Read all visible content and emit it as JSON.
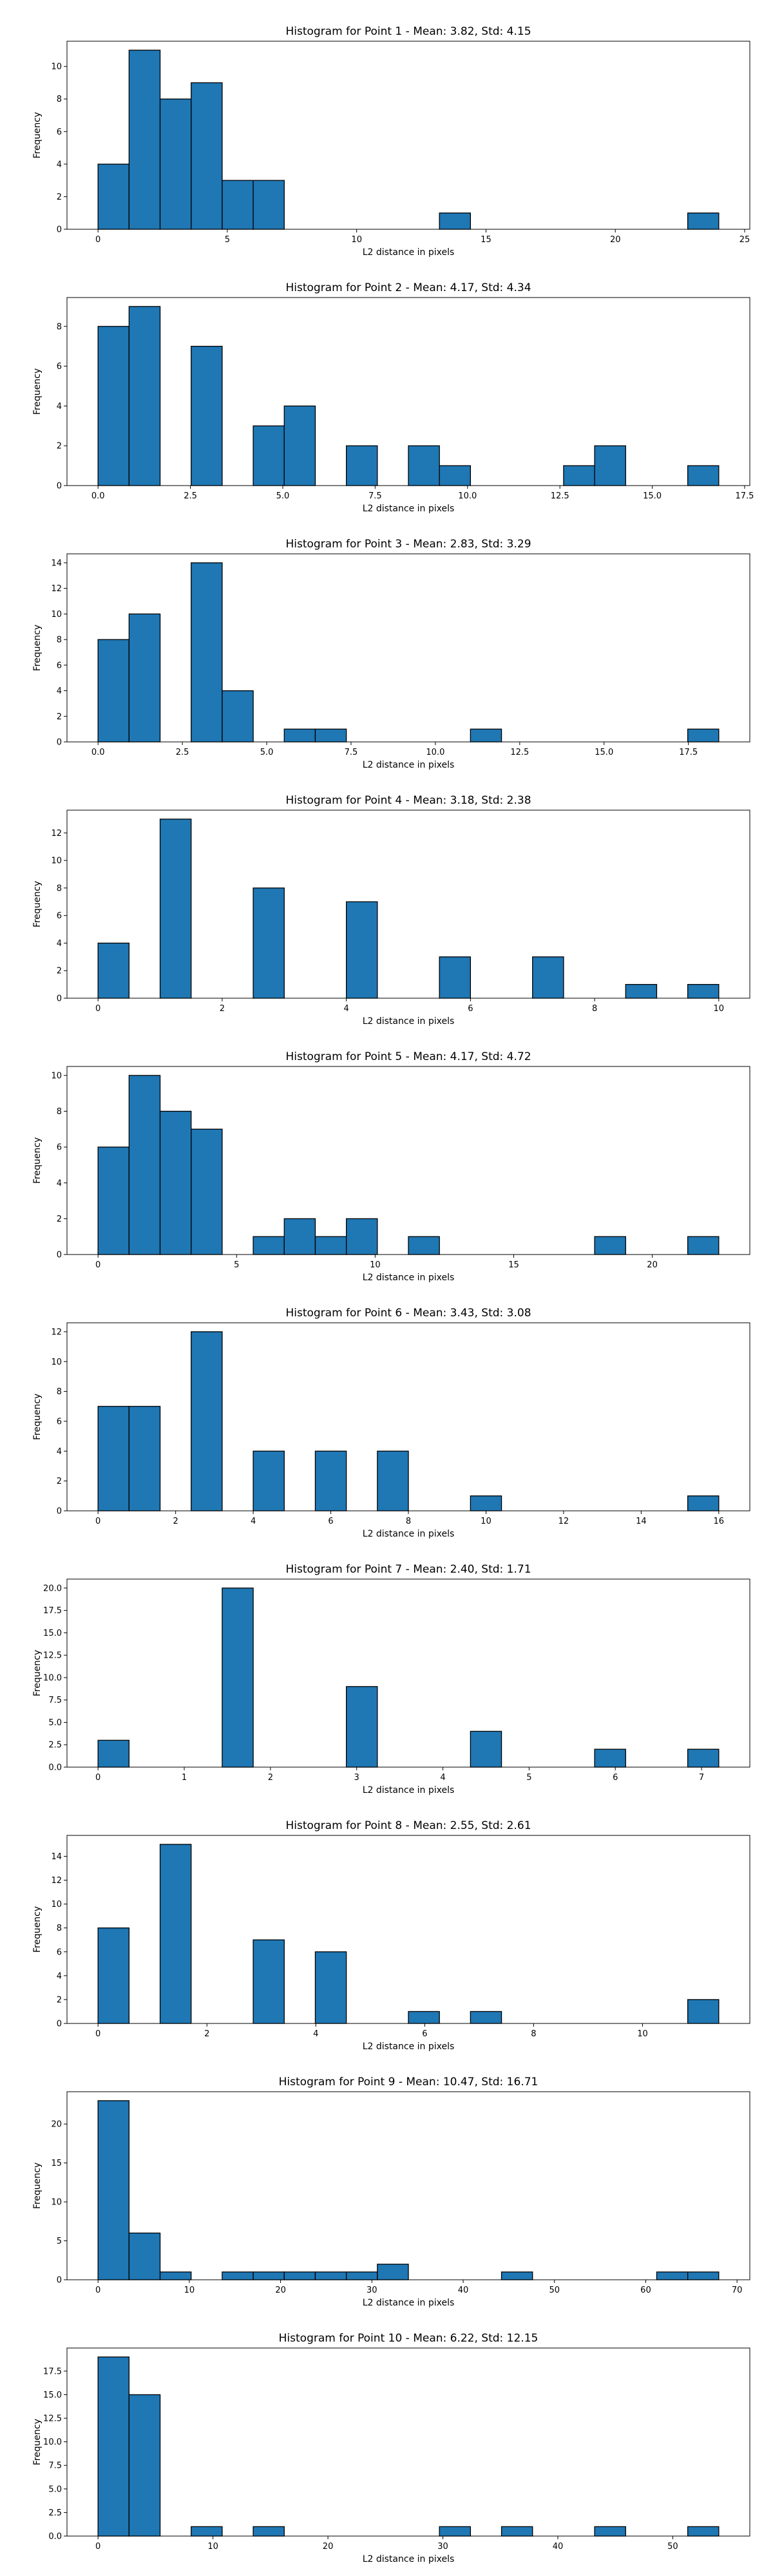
{
  "figure": {
    "background": "#ffffff",
    "bar_color": "#1f77b4",
    "edge_color": "#000000"
  },
  "chart_data": [
    {
      "type": "bar",
      "title": "Histogram for Point 1 - Mean: 3.82, Std: 4.15",
      "xlabel": "L2 distance in pixels",
      "ylabel": "Frequency",
      "xlim": [
        -1.2,
        25.2
      ],
      "ylim": [
        0,
        11.55
      ],
      "xticks": [
        0,
        5,
        10,
        15,
        20,
        25
      ],
      "yticks": [
        0,
        2,
        4,
        6,
        8,
        10
      ],
      "tick_labels_x": [
        "0",
        "5",
        "10",
        "15",
        "20",
        "25"
      ],
      "tick_labels_y": [
        "0",
        "2",
        "4",
        "6",
        "8",
        "10"
      ],
      "bin_start": 0,
      "bin_width": 1.2,
      "counts": [
        4,
        11,
        8,
        9,
        3,
        3,
        0,
        0,
        0,
        0,
        0,
        1,
        0,
        0,
        0,
        0,
        0,
        0,
        0,
        1
      ],
      "grid": false,
      "legend": "none"
    },
    {
      "type": "bar",
      "title": "Histogram for Point 2 - Mean: 4.17, Std: 4.34",
      "xlabel": "L2 distance in pixels",
      "ylabel": "Frequency",
      "xlim": [
        -0.84,
        17.64
      ],
      "ylim": [
        0,
        9.45
      ],
      "xticks": [
        0,
        2.5,
        5,
        7.5,
        10,
        12.5,
        15,
        17.5
      ],
      "yticks": [
        0,
        2,
        4,
        6,
        8
      ],
      "tick_labels_x": [
        "0.0",
        "2.5",
        "5.0",
        "7.5",
        "10.0",
        "12.5",
        "15.0",
        "17.5"
      ],
      "tick_labels_y": [
        "0",
        "2",
        "4",
        "6",
        "8"
      ],
      "bin_start": 0,
      "bin_width": 0.84,
      "counts": [
        8,
        9,
        0,
        7,
        0,
        3,
        4,
        0,
        2,
        0,
        2,
        1,
        0,
        0,
        0,
        1,
        2,
        0,
        0,
        1
      ],
      "grid": false,
      "legend": "none"
    },
    {
      "type": "bar",
      "title": "Histogram for Point 3 - Mean: 2.83, Std: 3.29",
      "xlabel": "L2 distance in pixels",
      "ylabel": "Frequency",
      "xlim": [
        -0.92,
        19.32
      ],
      "ylim": [
        0,
        14.7
      ],
      "xticks": [
        0,
        2.5,
        5,
        7.5,
        10,
        12.5,
        15,
        17.5
      ],
      "yticks": [
        0,
        2,
        4,
        6,
        8,
        10,
        12,
        14
      ],
      "tick_labels_x": [
        "0.0",
        "2.5",
        "5.0",
        "7.5",
        "10.0",
        "12.5",
        "15.0",
        "17.5"
      ],
      "tick_labels_y": [
        "0",
        "2",
        "4",
        "6",
        "8",
        "10",
        "12",
        "14"
      ],
      "bin_start": 0,
      "bin_width": 0.92,
      "counts": [
        8,
        10,
        0,
        14,
        4,
        0,
        1,
        1,
        0,
        0,
        0,
        0,
        1,
        0,
        0,
        0,
        0,
        0,
        0,
        1
      ],
      "grid": false,
      "legend": "none"
    },
    {
      "type": "bar",
      "title": "Histogram for Point 4 - Mean: 3.18, Std: 2.38",
      "xlabel": "L2 distance in pixels",
      "ylabel": "Frequency",
      "xlim": [
        -0.5,
        10.5
      ],
      "ylim": [
        0,
        13.65
      ],
      "xticks": [
        0,
        2,
        4,
        6,
        8,
        10
      ],
      "yticks": [
        0,
        2,
        4,
        6,
        8,
        10,
        12
      ],
      "tick_labels_x": [
        "0",
        "2",
        "4",
        "6",
        "8",
        "10"
      ],
      "tick_labels_y": [
        "0",
        "2",
        "4",
        "6",
        "8",
        "10",
        "12"
      ],
      "bin_start": 0,
      "bin_width": 0.5,
      "counts": [
        4,
        0,
        13,
        0,
        0,
        8,
        0,
        0,
        7,
        0,
        0,
        3,
        0,
        0,
        3,
        0,
        0,
        1,
        0,
        1
      ],
      "grid": false,
      "legend": "none"
    },
    {
      "type": "bar",
      "title": "Histogram for Point 5 - Mean: 4.17, Std: 4.72",
      "xlabel": "L2 distance in pixels",
      "ylabel": "Frequency",
      "xlim": [
        -1.12,
        23.52
      ],
      "ylim": [
        0,
        10.5
      ],
      "xticks": [
        0,
        5,
        10,
        15,
        20
      ],
      "yticks": [
        0,
        2,
        4,
        6,
        8,
        10
      ],
      "tick_labels_x": [
        "0",
        "5",
        "10",
        "15",
        "20"
      ],
      "tick_labels_y": [
        "0",
        "2",
        "4",
        "6",
        "8",
        "10"
      ],
      "bin_start": 0,
      "bin_width": 1.12,
      "counts": [
        6,
        10,
        8,
        7,
        0,
        1,
        2,
        1,
        2,
        0,
        1,
        0,
        0,
        0,
        0,
        0,
        1,
        0,
        0,
        1
      ],
      "grid": false,
      "legend": "none"
    },
    {
      "type": "bar",
      "title": "Histogram for Point 6 - Mean: 3.43, Std: 3.08",
      "xlabel": "L2 distance in pixels",
      "ylabel": "Frequency",
      "xlim": [
        -0.8,
        16.8
      ],
      "ylim": [
        0,
        12.6
      ],
      "xticks": [
        0,
        2,
        4,
        6,
        8,
        10,
        12,
        14,
        16
      ],
      "yticks": [
        0,
        2,
        4,
        6,
        8,
        10,
        12
      ],
      "tick_labels_x": [
        "0",
        "2",
        "4",
        "6",
        "8",
        "10",
        "12",
        "14",
        "16"
      ],
      "tick_labels_y": [
        "0",
        "2",
        "4",
        "6",
        "8",
        "10",
        "12"
      ],
      "bin_start": 0,
      "bin_width": 0.8,
      "counts": [
        7,
        7,
        0,
        12,
        0,
        4,
        0,
        4,
        0,
        4,
        0,
        0,
        1,
        0,
        0,
        0,
        0,
        0,
        0,
        1
      ],
      "grid": false,
      "legend": "none"
    },
    {
      "type": "bar",
      "title": "Histogram for Point 7 - Mean: 2.40, Std: 1.71",
      "xlabel": "L2 distance in pixels",
      "ylabel": "Frequency",
      "xlim": [
        -0.36,
        7.56
      ],
      "ylim": [
        0,
        21
      ],
      "xticks": [
        0,
        1,
        2,
        3,
        4,
        5,
        6,
        7
      ],
      "yticks": [
        0,
        2.5,
        5,
        7.5,
        10,
        12.5,
        15,
        17.5,
        20
      ],
      "tick_labels_x": [
        "0",
        "1",
        "2",
        "3",
        "4",
        "5",
        "6",
        "7"
      ],
      "tick_labels_y": [
        "0.0",
        "2.5",
        "5.0",
        "7.5",
        "10.0",
        "12.5",
        "15.0",
        "17.5",
        "20.0"
      ],
      "bin_start": 0,
      "bin_width": 0.36,
      "counts": [
        3,
        0,
        0,
        0,
        20,
        0,
        0,
        0,
        9,
        0,
        0,
        0,
        4,
        0,
        0,
        0,
        2,
        0,
        0,
        2
      ],
      "grid": false,
      "legend": "none"
    },
    {
      "type": "bar",
      "title": "Histogram for Point 8 - Mean: 2.55, Std: 2.61",
      "xlabel": "L2 distance in pixels",
      "ylabel": "Frequency",
      "xlim": [
        -0.57,
        11.97
      ],
      "ylim": [
        0,
        15.75
      ],
      "xticks": [
        0,
        2,
        4,
        6,
        8,
        10
      ],
      "yticks": [
        0,
        2,
        4,
        6,
        8,
        10,
        12,
        14
      ],
      "tick_labels_x": [
        "0",
        "2",
        "4",
        "6",
        "8",
        "10"
      ],
      "tick_labels_y": [
        "0",
        "2",
        "4",
        "6",
        "8",
        "10",
        "12",
        "14"
      ],
      "bin_start": 0,
      "bin_width": 0.57,
      "counts": [
        8,
        0,
        15,
        0,
        0,
        7,
        0,
        6,
        0,
        0,
        1,
        0,
        1,
        0,
        0,
        0,
        0,
        0,
        0,
        2
      ],
      "grid": false,
      "legend": "none"
    },
    {
      "type": "bar",
      "title": "Histogram for Point 9 - Mean: 10.47, Std: 16.71",
      "xlabel": "L2 distance in pixels",
      "ylabel": "Frequency",
      "xlim": [
        -3.4,
        71.4
      ],
      "ylim": [
        0,
        24.15
      ],
      "xticks": [
        0,
        10,
        20,
        30,
        40,
        50,
        60,
        70
      ],
      "yticks": [
        0,
        5,
        10,
        15,
        20
      ],
      "tick_labels_x": [
        "0",
        "10",
        "20",
        "30",
        "40",
        "50",
        "60",
        "70"
      ],
      "tick_labels_y": [
        "0",
        "5",
        "10",
        "15",
        "20"
      ],
      "bin_start": 0,
      "bin_width": 3.4,
      "counts": [
        23,
        6,
        1,
        0,
        1,
        1,
        1,
        1,
        1,
        2,
        0,
        0,
        0,
        1,
        0,
        0,
        0,
        0,
        1,
        1
      ],
      "grid": false,
      "legend": "none"
    },
    {
      "type": "bar",
      "title": "Histogram for Point 10 - Mean: 6.22, Std: 12.15",
      "xlabel": "L2 distance in pixels",
      "ylabel": "Frequency",
      "xlim": [
        -2.7,
        56.7
      ],
      "ylim": [
        0,
        19.95
      ],
      "xticks": [
        0,
        10,
        20,
        30,
        40,
        50
      ],
      "yticks": [
        0,
        2.5,
        5,
        7.5,
        10,
        12.5,
        15,
        17.5
      ],
      "tick_labels_x": [
        "0",
        "10",
        "20",
        "30",
        "40",
        "50"
      ],
      "tick_labels_y": [
        "0.0",
        "2.5",
        "5.0",
        "7.5",
        "10.0",
        "12.5",
        "15.0",
        "17.5"
      ],
      "bin_start": 0,
      "bin_width": 2.7,
      "counts": [
        19,
        15,
        0,
        1,
        0,
        1,
        0,
        0,
        0,
        0,
        0,
        1,
        0,
        1,
        0,
        0,
        1,
        0,
        0,
        1
      ],
      "grid": false,
      "legend": "none"
    }
  ]
}
